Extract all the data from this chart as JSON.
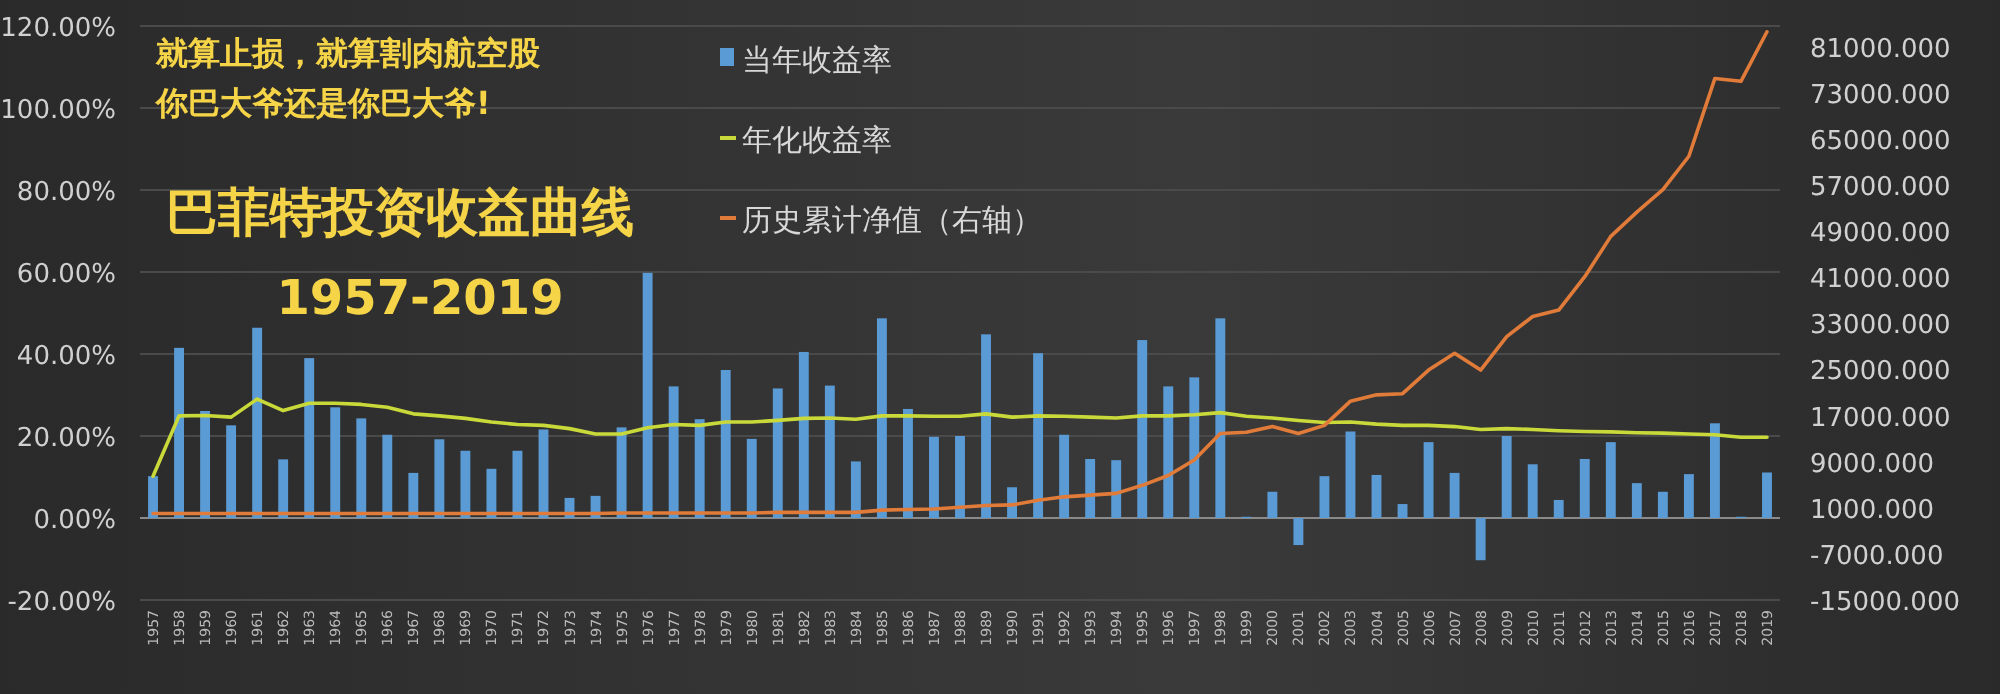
{
  "chart_data": {
    "type": "bar",
    "title": "巴菲特投资收益曲线",
    "subtitle": "1957-2019",
    "annotations": [
      "就算止损，就算割肉航空股",
      "你巴大爷还是你巴大爷!"
    ],
    "categories": [
      "1957",
      "1958",
      "1959",
      "1960",
      "1961",
      "1962",
      "1963",
      "1964",
      "1965",
      "1966",
      "1967",
      "1968",
      "1969",
      "1970",
      "1971",
      "1972",
      "1973",
      "1974",
      "1975",
      "1976",
      "1977",
      "1978",
      "1979",
      "1980",
      "1981",
      "1982",
      "1983",
      "1984",
      "1985",
      "1986",
      "1987",
      "1988",
      "1989",
      "1990",
      "1991",
      "1992",
      "1993",
      "1994",
      "1995",
      "1996",
      "1997",
      "1998",
      "1999",
      "2000",
      "2001",
      "2002",
      "2003",
      "2004",
      "2005",
      "2006",
      "2007",
      "2008",
      "2009",
      "2010",
      "2011",
      "2012",
      "2013",
      "2014",
      "2015",
      "2016",
      "2017",
      "2018",
      "2019"
    ],
    "series": [
      {
        "name": "当年收益率",
        "color": "#5b9bd5",
        "values": [
          10.2,
          41.5,
          26.1,
          22.6,
          46.4,
          14.3,
          39.0,
          27.0,
          24.3,
          20.3,
          11.0,
          19.2,
          16.4,
          12.0,
          16.4,
          21.6,
          4.9,
          5.4,
          22.1,
          59.8,
          32.1,
          24.1,
          36.1,
          19.3,
          31.6,
          40.5,
          32.3,
          13.8,
          48.7,
          26.6,
          19.8,
          20.0,
          44.8,
          7.5,
          40.2,
          20.3,
          14.4,
          14.1,
          43.4,
          32.1,
          34.3,
          48.7,
          0.3,
          6.4,
          -6.6,
          10.2,
          21.1,
          10.5,
          3.4,
          18.5,
          11.0,
          -10.3,
          20.0,
          13.1,
          4.4,
          14.4,
          18.5,
          8.5,
          6.4,
          10.7,
          23.1,
          0.3,
          11.1
        ]
      },
      {
        "name": "年化收益率",
        "type": "line",
        "color": "#c9d93a",
        "values": [
          10.2,
          24.9,
          25.0,
          24.6,
          29.0,
          26.2,
          28.0,
          28.0,
          27.7,
          27.0,
          25.4,
          24.9,
          24.3,
          23.4,
          22.8,
          22.6,
          21.8,
          20.5,
          20.5,
          22.0,
          22.8,
          22.6,
          23.4,
          23.4,
          23.8,
          24.3,
          24.4,
          24.1,
          24.9,
          24.9,
          24.8,
          24.8,
          25.4,
          24.6,
          24.9,
          24.8,
          24.6,
          24.4,
          24.9,
          24.9,
          25.2,
          25.7,
          24.8,
          24.4,
          23.8,
          23.3,
          23.4,
          22.9,
          22.6,
          22.6,
          22.3,
          21.6,
          21.8,
          21.6,
          21.3,
          21.1,
          21.0,
          20.8,
          20.7,
          20.5,
          20.3,
          19.7,
          19.7
        ]
      },
      {
        "name": "历史累计净值（右轴）",
        "type": "line",
        "axis": "y2",
        "color": "#e07b39",
        "values": [
          0,
          0,
          0,
          0,
          0,
          0,
          0,
          0,
          0,
          0,
          0,
          0,
          0,
          0,
          0,
          0,
          0,
          0,
          100,
          100,
          100,
          100,
          100,
          100,
          200,
          200,
          200,
          200,
          600,
          700,
          800,
          1100,
          1400,
          1500,
          2300,
          2900,
          3200,
          3500,
          4900,
          6600,
          9300,
          13900,
          14100,
          15100,
          13900,
          15300,
          19500,
          20600,
          20800,
          24900,
          27800,
          24900,
          30700,
          34200,
          35300,
          41100,
          48100,
          52300,
          56200,
          62000,
          75500,
          75000,
          83600
        ]
      }
    ],
    "ylim": [
      -20,
      120
    ],
    "yticks": [
      {
        "value": -20,
        "label": "-20.00%"
      },
      {
        "value": 0,
        "label": "0.00%"
      },
      {
        "value": 20,
        "label": "20.00%"
      },
      {
        "value": 40,
        "label": "40.00%"
      },
      {
        "value": 60,
        "label": "60.00%"
      },
      {
        "value": 80,
        "label": "80.00%"
      },
      {
        "value": 100,
        "label": "100.00%"
      },
      {
        "value": 120,
        "label": "120.00%"
      }
    ],
    "y2lim": [
      -15000,
      84600
    ],
    "y2ticks": [
      {
        "value": -15000,
        "label": "-15000.000"
      },
      {
        "value": -7000,
        "label": "-7000.000"
      },
      {
        "value": 1000,
        "label": "1000.000"
      },
      {
        "value": 9000,
        "label": "9000.000"
      },
      {
        "value": 17000,
        "label": "17000.000"
      },
      {
        "value": 25000,
        "label": "25000.000"
      },
      {
        "value": 33000,
        "label": "33000.000"
      },
      {
        "value": 41000,
        "label": "41000.000"
      },
      {
        "value": 49000,
        "label": "49000.000"
      },
      {
        "value": 57000,
        "label": "57000.000"
      },
      {
        "value": 65000,
        "label": "65000.000"
      },
      {
        "value": 73000,
        "label": "73000.000"
      },
      {
        "value": 81000,
        "label": "81000.000"
      }
    ],
    "grid": "y",
    "legend": "top"
  }
}
